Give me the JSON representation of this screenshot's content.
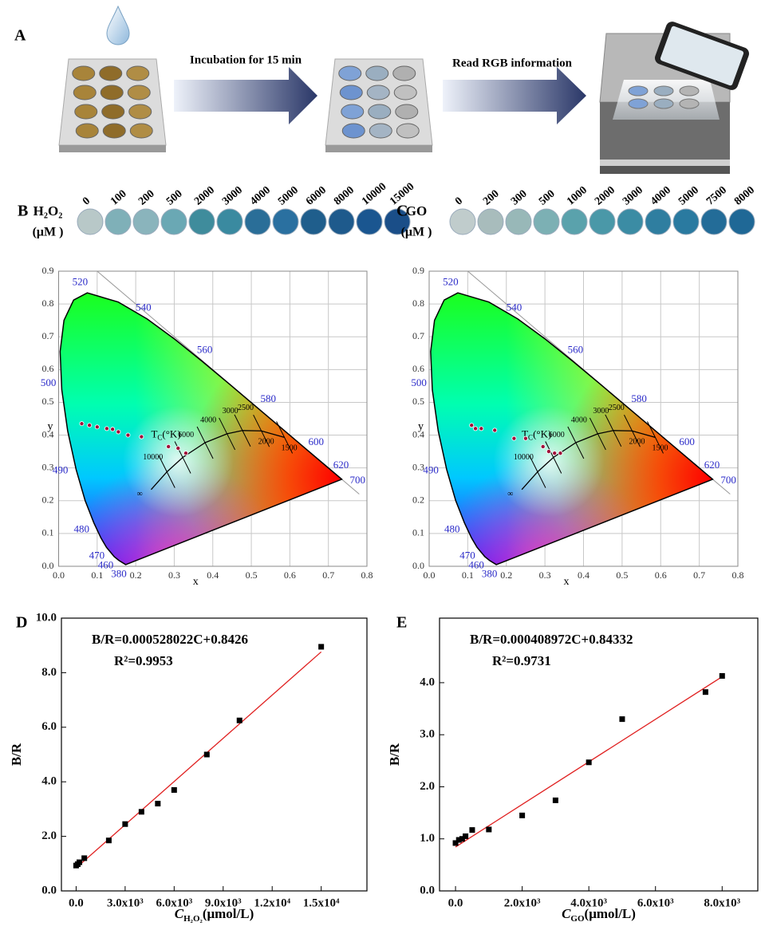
{
  "panel_a": {
    "label": "A",
    "step_1": "Incubation for 15 min",
    "step_2": "Read RGB information"
  },
  "chart_data": [
    {
      "type": "chromaticity",
      "panel": "B",
      "x_label": "x",
      "y_label": "y",
      "xlim": [
        0,
        0.8
      ],
      "ylim": [
        0,
        0.9
      ],
      "xticks": [
        {
          "value": 0,
          "label": "0.0"
        },
        0.1,
        0.2,
        0.3,
        0.4,
        0.5,
        0.6,
        0.7,
        0.8
      ],
      "yticks": [
        {
          "value": 0,
          "label": "0.0"
        },
        0.1,
        0.2,
        0.3,
        0.4,
        0.5,
        0.6,
        0.7,
        0.8,
        0.9
      ],
      "grid": true,
      "samples": {
        "analyte": "H₂O₂",
        "unit": "(μM )",
        "concentrations": [
          0,
          100,
          200,
          500,
          2000,
          3000,
          4000,
          5000,
          6000,
          8000,
          10000,
          15000
        ],
        "colors": [
          "#b8c8c8",
          "#7fb0b8",
          "#8ab4bc",
          "#6aa8b4",
          "#3f8c9c",
          "#3a8aa0",
          "#2a6e98",
          "#2a70a0",
          "#1f5e8c",
          "#1e5a8c",
          "#1a5690",
          "#1a4e88"
        ]
      },
      "locus": {
        "nm": [
          380,
          null,
          460,
          470,
          null,
          480,
          null,
          490,
          null,
          500,
          null,
          null,
          null,
          520,
          null,
          540,
          null,
          560,
          null,
          580,
          null,
          600,
          620,
          700
        ],
        "x": [
          0.1741,
          0.1566,
          0.144,
          0.1241,
          0.1096,
          0.0913,
          0.0687,
          0.0454,
          0.0235,
          0.0082,
          0.0039,
          0.0139,
          0.0389,
          0.0743,
          0.1547,
          0.2296,
          0.3016,
          0.3731,
          0.4441,
          0.5125,
          0.5752,
          0.627,
          0.6915,
          0.7347
        ],
        "y": [
          0.005,
          0.0177,
          0.0297,
          0.0578,
          0.0868,
          0.1327,
          0.2007,
          0.295,
          0.4127,
          0.5384,
          0.6548,
          0.7502,
          0.812,
          0.8338,
          0.8059,
          0.7543,
          0.6923,
          0.6245,
          0.5547,
          0.4866,
          0.4242,
          0.3725,
          0.3083,
          0.2653
        ]
      },
      "planck": {
        "tc_symbol": "T",
        "tc_subscript": "C",
        "tc_unit": "(°K)",
        "labels": [
          "∞",
          10000,
          6000,
          4000,
          3000,
          2500,
          2000,
          1500
        ],
        "x": [
          0.24,
          0.281,
          0.322,
          0.38,
          0.437,
          0.477,
          0.526,
          0.586
        ],
        "y": [
          0.234,
          0.288,
          0.332,
          0.377,
          0.404,
          0.414,
          0.413,
          0.393
        ]
      },
      "points_x": [
        0.06,
        0.08,
        0.1,
        0.125,
        0.14,
        0.155,
        0.18,
        0.215,
        0.285,
        0.31,
        0.33
      ],
      "points_y": [
        0.435,
        0.43,
        0.425,
        0.42,
        0.418,
        0.41,
        0.4,
        0.395,
        0.365,
        0.36,
        0.345
      ],
      "point_color": "#a0103a"
    },
    {
      "type": "chromaticity",
      "panel": "C",
      "x_label": "x",
      "y_label": "y",
      "xlim": [
        0,
        0.8
      ],
      "ylim": [
        0,
        0.9
      ],
      "xticks": [
        {
          "value": 0,
          "label": "0.0"
        },
        0.1,
        0.2,
        0.3,
        0.4,
        0.5,
        0.6,
        0.7,
        0.8
      ],
      "yticks": [
        {
          "value": 0,
          "label": "0.0"
        },
        0.1,
        0.2,
        0.3,
        0.4,
        0.5,
        0.6,
        0.7,
        0.8,
        0.9
      ],
      "grid": true,
      "samples": {
        "analyte": "GO",
        "unit": "(μM )",
        "concentrations": [
          0,
          200,
          300,
          500,
          1000,
          2000,
          3000,
          4000,
          5000,
          7500,
          8000
        ],
        "colors": [
          "#c0cccc",
          "#a8bcbc",
          "#98b8b8",
          "#7cb0b4",
          "#5aa2ac",
          "#4a98a8",
          "#3b8ca4",
          "#2f7ea0",
          "#2a7aa0",
          "#236c98",
          "#1f6896"
        ]
      },
      "locus": {
        "nm": [
          380,
          null,
          460,
          470,
          null,
          480,
          null,
          490,
          null,
          500,
          null,
          null,
          null,
          520,
          null,
          540,
          null,
          560,
          null,
          580,
          null,
          600,
          620,
          700
        ],
        "x": [
          0.1741,
          0.1566,
          0.144,
          0.1241,
          0.1096,
          0.0913,
          0.0687,
          0.0454,
          0.0235,
          0.0082,
          0.0039,
          0.0139,
          0.0389,
          0.0743,
          0.1547,
          0.2296,
          0.3016,
          0.3731,
          0.4441,
          0.5125,
          0.5752,
          0.627,
          0.6915,
          0.7347
        ],
        "y": [
          0.005,
          0.0177,
          0.0297,
          0.0578,
          0.0868,
          0.1327,
          0.2007,
          0.295,
          0.4127,
          0.5384,
          0.6548,
          0.7502,
          0.812,
          0.8338,
          0.8059,
          0.7543,
          0.6923,
          0.6245,
          0.5547,
          0.4866,
          0.4242,
          0.3725,
          0.3083,
          0.2653
        ]
      },
      "planck": {
        "tc_symbol": "T",
        "tc_subscript": "C",
        "tc_unit": "(°K)",
        "labels": [
          "∞",
          10000,
          6000,
          4000,
          3000,
          2500,
          2000,
          1500
        ],
        "x": [
          0.24,
          0.281,
          0.322,
          0.38,
          0.437,
          0.477,
          0.526,
          0.586
        ],
        "y": [
          0.234,
          0.288,
          0.332,
          0.377,
          0.404,
          0.414,
          0.413,
          0.393
        ]
      },
      "points_x": [
        0.11,
        0.12,
        0.135,
        0.17,
        0.22,
        0.25,
        0.295,
        0.31,
        0.325,
        0.34
      ],
      "points_y": [
        0.43,
        0.42,
        0.42,
        0.415,
        0.39,
        0.39,
        0.365,
        0.35,
        0.345,
        0.345
      ],
      "point_color": "#a0103a"
    },
    {
      "type": "scatter",
      "panel": "D",
      "equation": "B/R=0.000528022C+0.8426",
      "r_squared": "R²=0.9953",
      "y_label": "B/R",
      "x_label": {
        "symbol": "C",
        "subscript": "H₂O₂",
        "unit": "(μmol/L)"
      },
      "xlim": [
        -900,
        17800
      ],
      "ylim": [
        0,
        10
      ],
      "xticks": [
        {
          "value": 0,
          "label": "0.0"
        },
        {
          "value": 3000,
          "label": "3.0x10³"
        },
        {
          "value": 6000,
          "label": "6.0x10³"
        },
        {
          "value": 9000,
          "label": "9.0x10³"
        },
        {
          "value": 12000,
          "label": "1.2x10⁴"
        },
        {
          "value": 15000,
          "label": "1.5x10⁴"
        }
      ],
      "yticks": [
        {
          "value": 0,
          "label": "0.0"
        },
        {
          "value": 2,
          "label": "2.0"
        },
        {
          "value": 4,
          "label": "4.0"
        },
        {
          "value": 6,
          "label": "6.0"
        },
        {
          "value": 8,
          "label": "8.0"
        },
        {
          "value": 10,
          "label": "10.0"
        }
      ],
      "x": [
        0,
        100,
        200,
        500,
        2000,
        3000,
        4000,
        5000,
        6000,
        8000,
        10000,
        15000
      ],
      "values": [
        0.93,
        0.98,
        1.05,
        1.2,
        1.85,
        2.45,
        2.9,
        3.2,
        3.7,
        5.0,
        6.25,
        8.95
      ],
      "color": "#000000",
      "fit": {
        "slope": 0.000528022,
        "intercept": 0.8426,
        "x": [
          0,
          15000
        ],
        "color": "#e02020"
      }
    },
    {
      "type": "scatter",
      "panel": "E",
      "equation": "B/R=0.000408972C+0.84332",
      "r_squared": "R²=0.9731",
      "y_label": "B/R",
      "x_label": {
        "symbol": "C",
        "subscript": "GO",
        "unit": "(μmol/L)"
      },
      "xlim": [
        -480,
        9070
      ],
      "ylim": [
        0,
        5.24
      ],
      "xticks": [
        {
          "value": 0,
          "label": "0.0"
        },
        {
          "value": 2000,
          "label": "2.0x10³"
        },
        {
          "value": 4000,
          "label": "4.0x10³"
        },
        {
          "value": 6000,
          "label": "6.0x10³"
        },
        {
          "value": 8000,
          "label": "8.0x10³"
        }
      ],
      "yticks": [
        {
          "value": 0,
          "label": "0.0"
        },
        {
          "value": 1,
          "label": "1.0"
        },
        {
          "value": 2,
          "label": "2.0"
        },
        {
          "value": 3,
          "label": "3.0"
        },
        {
          "value": 4,
          "label": "4.0"
        }
      ],
      "x": [
        0,
        100,
        200,
        300,
        500,
        1000,
        2000,
        3000,
        4000,
        5000,
        7500,
        8000
      ],
      "values": [
        0.92,
        0.98,
        1.0,
        1.05,
        1.17,
        1.18,
        1.45,
        1.74,
        2.47,
        3.3,
        3.82,
        4.13
      ],
      "color": "#000000",
      "fit": {
        "slope": 0.000408972,
        "intercept": 0.84332,
        "x": [
          0,
          8000
        ],
        "color": "#e02020"
      }
    }
  ]
}
